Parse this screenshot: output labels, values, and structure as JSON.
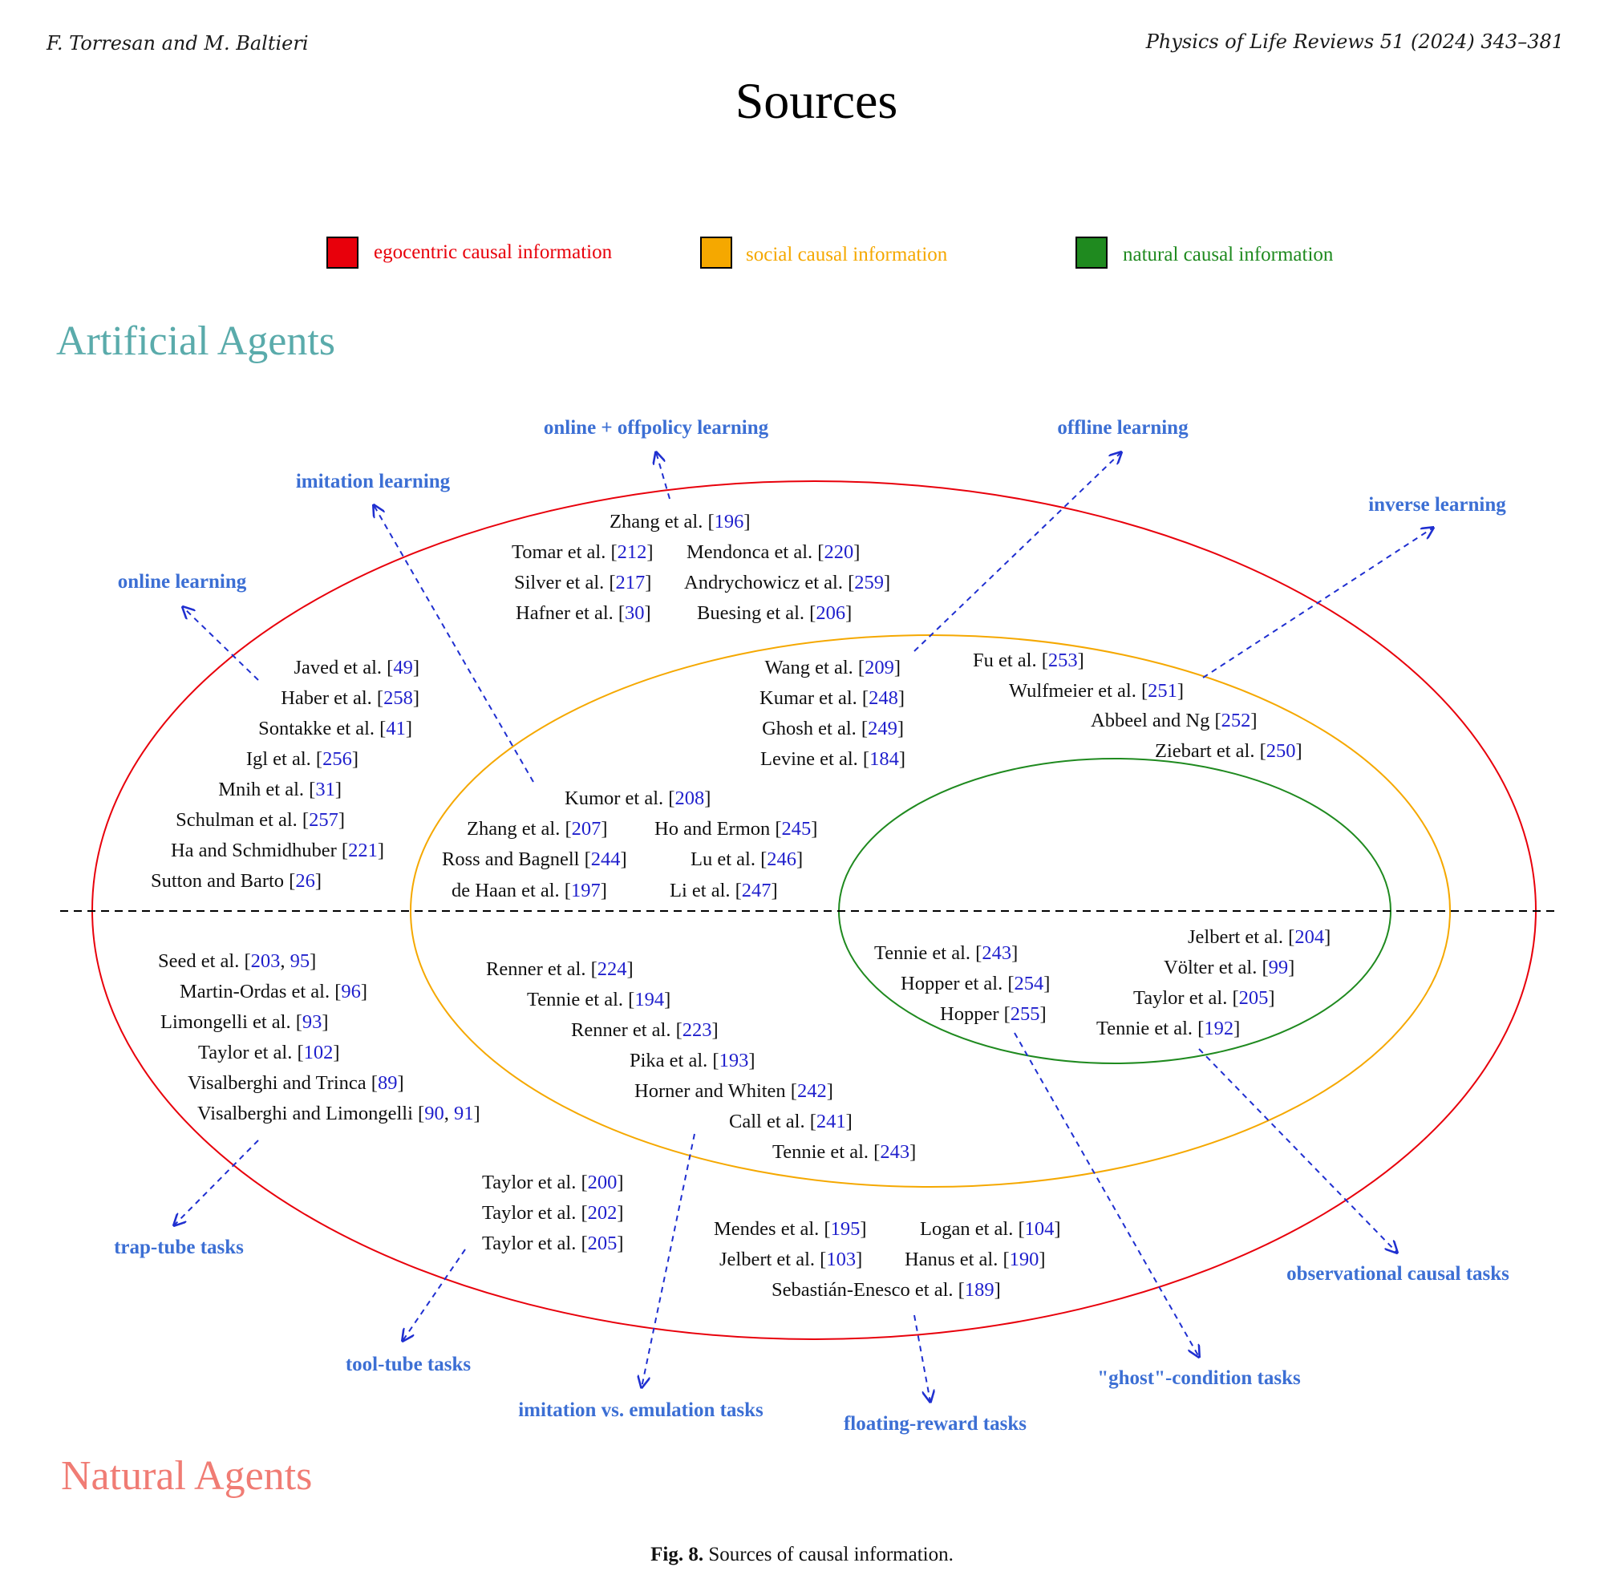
{
  "header": {
    "authors": "F. Torresan and M. Baltieri",
    "journal": "Physics of Life Reviews 51 (2024) 343–381"
  },
  "title": "Sources",
  "legend": [
    {
      "label": "egocentric causal information",
      "color": "#e8000b"
    },
    {
      "label": "social causal information",
      "color": "#f5a800"
    },
    {
      "label": "natural causal information",
      "color": "#1f8a1f"
    }
  ],
  "regions": {
    "artificial": {
      "label": "Artificial Agents",
      "color": "#5aabab"
    },
    "natural": {
      "label": "Natural Agents",
      "color": "#f07c74"
    }
  },
  "categories": {
    "online_offpolicy": "online + offpolicy learning",
    "offline": "offline learning",
    "imitation": "imitation learning",
    "inverse": "inverse learning",
    "online": "online learning",
    "trap_tube": "trap-tube tasks",
    "tool_tube": "tool-tube tasks",
    "imitation_emulation": "imitation vs. emulation tasks",
    "floating_reward": "floating-reward tasks",
    "ghost": "\"ghost\"-condition tasks",
    "observational": "observational causal tasks"
  },
  "references": {
    "zhang196": {
      "author": "Zhang et al.",
      "nums": [
        "196"
      ]
    },
    "tomar212": {
      "author": "Tomar et al.",
      "nums": [
        "212"
      ]
    },
    "mendonca220": {
      "author": "Mendonca et al.",
      "nums": [
        "220"
      ]
    },
    "silver217": {
      "author": "Silver et al.",
      "nums": [
        "217"
      ]
    },
    "andry259": {
      "author": "Andrychowicz et al.",
      "nums": [
        "259"
      ]
    },
    "hafner30": {
      "author": "Hafner et al.",
      "nums": [
        "30"
      ]
    },
    "buesing206": {
      "author": "Buesing et al.",
      "nums": [
        "206"
      ]
    },
    "javed49": {
      "author": "Javed et al.",
      "nums": [
        "49"
      ]
    },
    "haber258": {
      "author": "Haber et al.",
      "nums": [
        "258"
      ]
    },
    "sontakke41": {
      "author": "Sontakke et al.",
      "nums": [
        "41"
      ]
    },
    "igl256": {
      "author": "Igl et al.",
      "nums": [
        "256"
      ]
    },
    "mnih31": {
      "author": "Mnih et al.",
      "nums": [
        "31"
      ]
    },
    "schulman257": {
      "author": "Schulman et al.",
      "nums": [
        "257"
      ]
    },
    "ha221": {
      "author": "Ha and Schmidhuber",
      "nums": [
        "221"
      ]
    },
    "sutton26": {
      "author": "Sutton and Barto",
      "nums": [
        "26"
      ]
    },
    "wang209": {
      "author": "Wang et al.",
      "nums": [
        "209"
      ]
    },
    "kumar248": {
      "author": "Kumar et al.",
      "nums": [
        "248"
      ]
    },
    "ghosh249": {
      "author": "Ghosh et al.",
      "nums": [
        "249"
      ]
    },
    "levine184": {
      "author": "Levine et al.",
      "nums": [
        "184"
      ]
    },
    "fu253": {
      "author": "Fu et al.",
      "nums": [
        "253"
      ]
    },
    "wulf251": {
      "author": "Wulfmeier et al.",
      "nums": [
        "251"
      ]
    },
    "abbeel252": {
      "author": "Abbeel and Ng",
      "nums": [
        "252"
      ]
    },
    "ziebart250": {
      "author": "Ziebart et al.",
      "nums": [
        "250"
      ]
    },
    "kumor208": {
      "author": "Kumor et al.",
      "nums": [
        "208"
      ]
    },
    "zhang207": {
      "author": "Zhang et al.",
      "nums": [
        "207"
      ]
    },
    "ho245": {
      "author": "Ho and Ermon",
      "nums": [
        "245"
      ]
    },
    "ross244": {
      "author": "Ross and Bagnell",
      "nums": [
        "244"
      ]
    },
    "lu246": {
      "author": "Lu et al.",
      "nums": [
        "246"
      ]
    },
    "dehaan197": {
      "author": "de Haan et al.",
      "nums": [
        "197"
      ]
    },
    "li247": {
      "author": "Li et al.",
      "nums": [
        "247"
      ]
    },
    "seed203": {
      "author": "Seed et al.",
      "nums": [
        "203",
        "95"
      ]
    },
    "martin96": {
      "author": "Martin-Ordas et al.",
      "nums": [
        "96"
      ]
    },
    "limongelli93": {
      "author": "Limongelli et al.",
      "nums": [
        "93"
      ]
    },
    "taylor102": {
      "author": "Taylor et al.",
      "nums": [
        "102"
      ]
    },
    "visal89": {
      "author": "Visalberghi and Trinca",
      "nums": [
        "89"
      ]
    },
    "visal90": {
      "author": "Visalberghi and Limongelli",
      "nums": [
        "90",
        "91"
      ]
    },
    "renner224": {
      "author": "Renner et al.",
      "nums": [
        "224"
      ]
    },
    "tennie194": {
      "author": "Tennie et al.",
      "nums": [
        "194"
      ]
    },
    "renner223": {
      "author": "Renner et al.",
      "nums": [
        "223"
      ]
    },
    "pika193": {
      "author": "Pika et al.",
      "nums": [
        "193"
      ]
    },
    "horner242": {
      "author": "Horner and Whiten",
      "nums": [
        "242"
      ]
    },
    "call241": {
      "author": "Call et al.",
      "nums": [
        "241"
      ]
    },
    "tennie243b": {
      "author": "Tennie et al.",
      "nums": [
        "243"
      ]
    },
    "tennie243": {
      "author": "Tennie et al.",
      "nums": [
        "243"
      ]
    },
    "hopper254": {
      "author": "Hopper et al.",
      "nums": [
        "254"
      ]
    },
    "hopper255": {
      "author": "Hopper",
      "nums": [
        "255"
      ]
    },
    "jelbert204": {
      "author": "Jelbert et al.",
      "nums": [
        "204"
      ]
    },
    "volter99": {
      "author": "Völter et al.",
      "nums": [
        "99"
      ]
    },
    "taylor205a": {
      "author": "Taylor et al.",
      "nums": [
        "205"
      ]
    },
    "tennie192": {
      "author": "Tennie et al.",
      "nums": [
        "192"
      ]
    },
    "taylor200": {
      "author": "Taylor et al.",
      "nums": [
        "200"
      ]
    },
    "taylor202": {
      "author": "Taylor et al.",
      "nums": [
        "202"
      ]
    },
    "taylor205b": {
      "author": "Taylor et al.",
      "nums": [
        "205"
      ]
    },
    "mendes195": {
      "author": "Mendes et al.",
      "nums": [
        "195"
      ]
    },
    "logan104": {
      "author": "Logan et al.",
      "nums": [
        "104"
      ]
    },
    "jelbert103": {
      "author": "Jelbert et al.",
      "nums": [
        "103"
      ]
    },
    "hanus190": {
      "author": "Hanus et al.",
      "nums": [
        "190"
      ]
    },
    "sebastian189": {
      "author": "Sebastián-Enesco et al.",
      "nums": [
        "189"
      ]
    }
  },
  "caption": {
    "label": "Fig. 8.",
    "text": " Sources of causal information."
  }
}
